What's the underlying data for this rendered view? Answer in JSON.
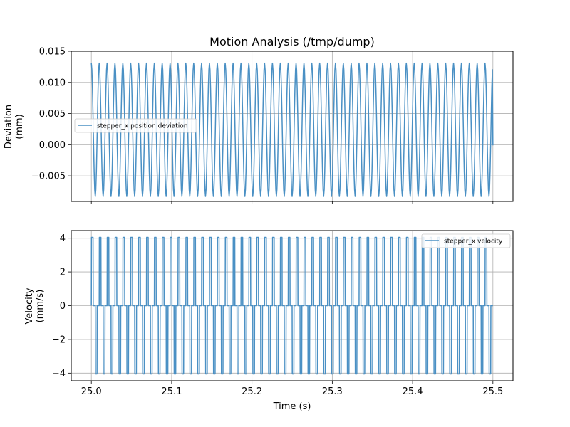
{
  "chart_data": [
    {
      "type": "line",
      "title": "Motion Analysis (/tmp/dump)",
      "xlabel": "",
      "ylabel": [
        "Deviation",
        "(mm)"
      ],
      "xlim": [
        24.975,
        25.525
      ],
      "ylim": [
        -0.0091,
        0.015
      ],
      "x_ticks": [
        25.0,
        25.1,
        25.2,
        25.3,
        25.4,
        25.5
      ],
      "y_ticks": [
        -0.005,
        0.0,
        0.005,
        0.01,
        0.015
      ],
      "y_tick_labels": [
        "−0.005",
        "0.000",
        "0.005",
        "0.010",
        "0.015"
      ],
      "grid": true,
      "legend_position": "center-left",
      "series": [
        {
          "name": "stepper_x position deviation",
          "color": "#4a90c4",
          "x_start": 25.0,
          "x_end": 25.5,
          "cycles": 51,
          "peak": 0.0131,
          "trough": -0.0083,
          "end_value": -0.0001
        }
      ]
    },
    {
      "type": "line",
      "xlabel": "Time (s)",
      "ylabel": [
        "Velocity",
        "(mm/s)"
      ],
      "xlim": [
        24.975,
        25.525
      ],
      "ylim": [
        -4.45,
        4.45
      ],
      "x_ticks": [
        25.0,
        25.1,
        25.2,
        25.3,
        25.4,
        25.5
      ],
      "x_tick_labels": [
        "25.0",
        "25.1",
        "25.2",
        "25.3",
        "25.4",
        "25.5"
      ],
      "y_ticks": [
        -4,
        -2,
        0,
        2,
        4
      ],
      "y_tick_labels": [
        "−4",
        "−2",
        "0",
        "2",
        "4"
      ],
      "grid": true,
      "legend_position": "top-right",
      "series": [
        {
          "name": "stepper_x velocity",
          "color": "#4a90c4",
          "x_start": 25.0,
          "x_end": 25.5,
          "cycles": 51,
          "high": 4.05,
          "low": -4.05,
          "base": 0
        }
      ]
    }
  ]
}
